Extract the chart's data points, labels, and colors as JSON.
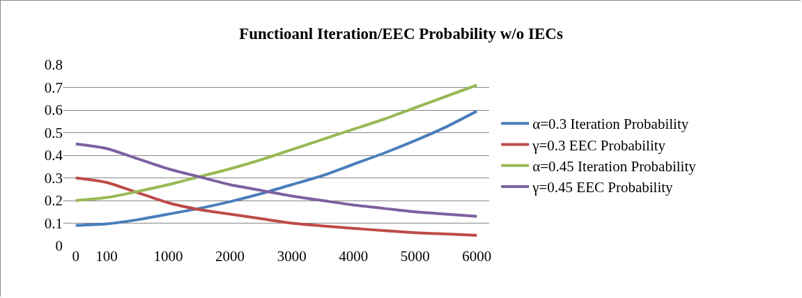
{
  "chart_data": {
    "type": "line",
    "title": "Functioanl Iteration/EEC Probability w/o IECs",
    "categories": [
      "0",
      "100",
      null,
      "1000",
      null,
      "2000",
      null,
      "3000",
      null,
      "4000",
      null,
      "5000",
      null,
      "6000"
    ],
    "series": [
      {
        "name": "α=0.3 Iteration Probability",
        "color": "#4a7ebb",
        "values": [
          0.09,
          0.097,
          0.115,
          0.14,
          0.165,
          0.195,
          0.23,
          0.27,
          0.31,
          0.36,
          0.41,
          0.465,
          0.525,
          0.595
        ]
      },
      {
        "name": "γ=0.3 EEC Probability",
        "color": "#be4b48",
        "values": [
          0.3,
          0.28,
          0.235,
          0.19,
          0.16,
          0.14,
          0.12,
          0.1,
          0.088,
          0.077,
          0.067,
          0.058,
          0.052,
          0.046
        ]
      },
      {
        "name": "α=0.45 Iteration Probability",
        "color": "#98b954",
        "values": [
          0.2,
          0.213,
          0.24,
          0.27,
          0.305,
          0.34,
          0.38,
          0.425,
          0.47,
          0.515,
          0.56,
          0.61,
          0.66,
          0.71
        ]
      },
      {
        "name": "γ=0.45 EEC Probability",
        "color": "#7d60a0",
        "values": [
          0.45,
          0.43,
          0.385,
          0.34,
          0.305,
          0.27,
          0.245,
          0.22,
          0.2,
          0.18,
          0.165,
          0.15,
          0.14,
          0.13
        ]
      }
    ],
    "ylim": [
      0,
      0.8
    ],
    "yticks": [
      0,
      0.1,
      0.2,
      0.3,
      0.4,
      0.5,
      0.6,
      0.7,
      0.8
    ],
    "grid": "y",
    "legend": "right",
    "marker": "none",
    "line_style": "solid"
  }
}
